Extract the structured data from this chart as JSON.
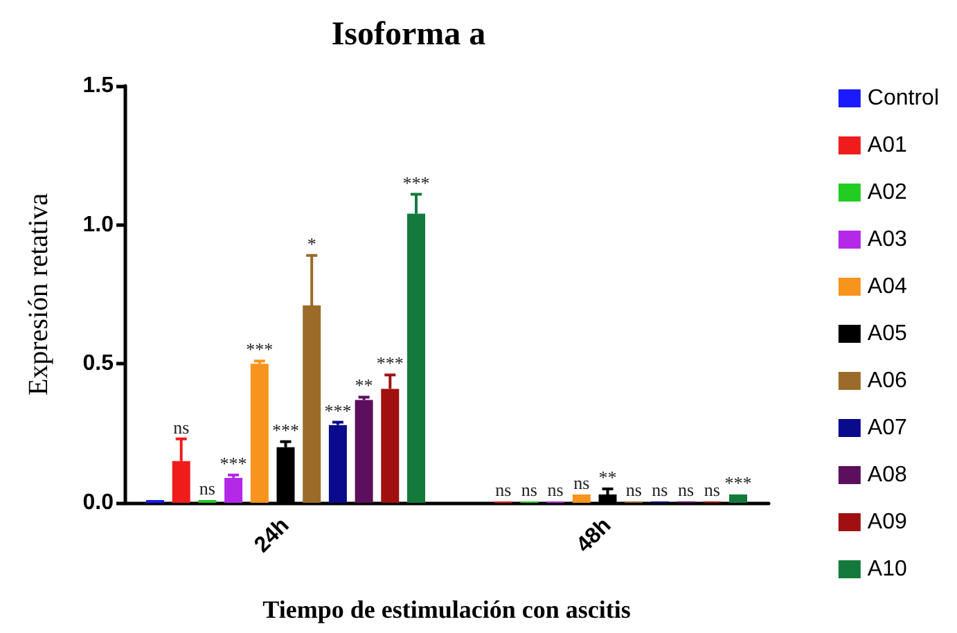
{
  "chart_data": {
    "type": "bar",
    "title": "Isoforma a",
    "xlabel": "Tiempo de estimulación con ascitis",
    "ylabel": "Expresión retativa",
    "categories": [
      "24h",
      "48h"
    ],
    "ylim": [
      0,
      1.5
    ],
    "yticks": [
      {
        "value": 0,
        "label": "0.0"
      },
      {
        "value": 0.5,
        "label": "0.5"
      },
      {
        "value": 1,
        "label": "1.0"
      },
      {
        "value": 1.5,
        "label": "1.5"
      }
    ],
    "grid": false,
    "legend": "right",
    "series": [
      {
        "name": "Control",
        "color": "#1a1aff",
        "values": [
          0.01,
          0
        ],
        "value_labels": [
          null,
          null
        ]
      },
      {
        "name": "A01",
        "color": "#f01c1c",
        "values": [
          0.15,
          0.005
        ],
        "errors": [
          [
            0.15,
            0.23
          ],
          null
        ],
        "value_labels": [
          "ns",
          "ns"
        ]
      },
      {
        "name": "A02",
        "color": "#22cc22",
        "values": [
          0.01,
          0.005
        ],
        "value_labels": [
          "ns",
          "ns"
        ]
      },
      {
        "name": "A03",
        "color": "#b428e8",
        "values": [
          0.09,
          0.005
        ],
        "errors": [
          [
            0.09,
            0.1
          ],
          null
        ],
        "value_labels": [
          "***",
          "ns"
        ]
      },
      {
        "name": "A04",
        "color": "#f7941d",
        "values": [
          0.5,
          0.03
        ],
        "errors": [
          [
            0.5,
            0.51
          ],
          null
        ],
        "value_labels": [
          "***",
          "ns"
        ]
      },
      {
        "name": "A05",
        "color": "#000000",
        "values": [
          0.2,
          0.03
        ],
        "errors": [
          [
            0.2,
            0.22
          ],
          [
            0.03,
            0.05
          ]
        ],
        "value_labels": [
          "***",
          "**"
        ]
      },
      {
        "name": "A06",
        "color": "#9c6b2a",
        "values": [
          0.71,
          0.005
        ],
        "errors": [
          [
            0.71,
            0.89
          ],
          null
        ],
        "value_labels": [
          "*",
          "ns"
        ]
      },
      {
        "name": "A07",
        "color": "#0a0a8c",
        "values": [
          0.28,
          0.005
        ],
        "errors": [
          [
            0.28,
            0.29
          ],
          null
        ],
        "value_labels": [
          "***",
          "ns"
        ]
      },
      {
        "name": "A08",
        "color": "#5c0f5c",
        "values": [
          0.37,
          0.005
        ],
        "errors": [
          [
            0.37,
            0.38
          ],
          null
        ],
        "value_labels": [
          "**",
          "ns"
        ]
      },
      {
        "name": "A09",
        "color": "#a01010",
        "values": [
          0.41,
          0.005
        ],
        "errors": [
          [
            0.41,
            0.46
          ],
          null
        ],
        "value_labels": [
          "***",
          "ns"
        ]
      },
      {
        "name": "A10",
        "color": "#137a3c",
        "values": [
          1.04,
          0.03
        ],
        "errors": [
          [
            1.04,
            1.11
          ],
          null
        ],
        "value_labels": [
          "***",
          "***"
        ]
      }
    ]
  }
}
